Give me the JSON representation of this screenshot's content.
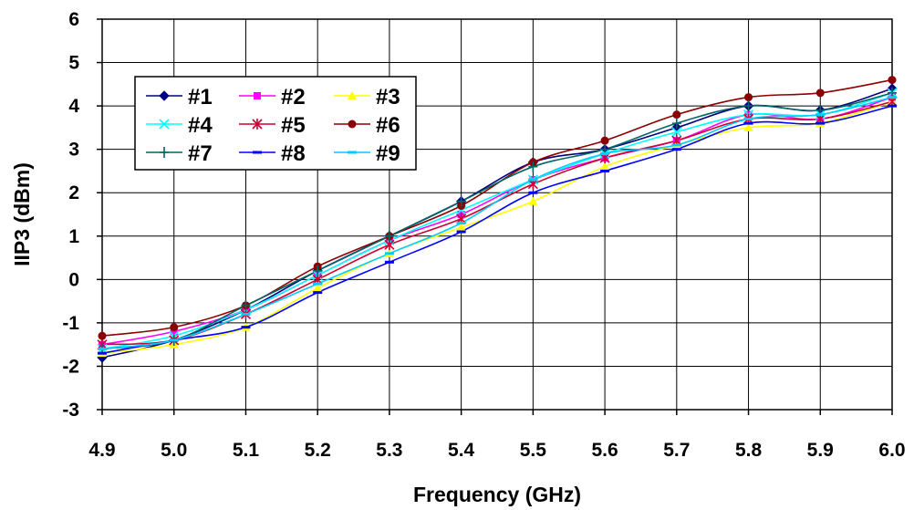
{
  "chart_data": {
    "type": "line",
    "title": "",
    "xlabel": "Frequency (GHz)",
    "ylabel": "IIP3 (dBm)",
    "x": [
      "4.9",
      "5.0",
      "5.1",
      "5.2",
      "5.3",
      "5.4",
      "5.5",
      "5.6",
      "5.7",
      "5.8",
      "5.9",
      "6.0"
    ],
    "yticks": [
      "6",
      "5",
      "4",
      "3",
      "2",
      "1",
      "0",
      "-1",
      "-2",
      "-3"
    ],
    "ylim": [
      -3,
      6
    ],
    "grid": true,
    "legend_placement": "upper-left",
    "series": [
      {
        "name": "#1",
        "color": "#000080",
        "marker": "diamond",
        "values": [
          -1.8,
          -1.4,
          -0.7,
          0.2,
          1.0,
          1.8,
          2.7,
          3.0,
          3.5,
          4.0,
          3.9,
          4.4
        ]
      },
      {
        "name": "#2",
        "color": "#ff00ff",
        "marker": "square",
        "values": [
          -1.5,
          -1.2,
          -0.7,
          0.1,
          0.9,
          1.5,
          2.3,
          2.8,
          3.2,
          3.8,
          3.7,
          4.2
        ]
      },
      {
        "name": "#3",
        "color": "#ffff00",
        "marker": "triangle",
        "values": [
          -1.7,
          -1.5,
          -1.1,
          -0.2,
          0.6,
          1.2,
          1.8,
          2.6,
          3.1,
          3.5,
          3.6,
          4.1
        ]
      },
      {
        "name": "#4",
        "color": "#00ffff",
        "marker": "x",
        "values": [
          -1.6,
          -1.3,
          -0.7,
          0.1,
          0.9,
          1.6,
          2.3,
          2.9,
          3.4,
          3.8,
          3.8,
          4.3
        ]
      },
      {
        "name": "#5",
        "color": "#cc0033",
        "marker": "star",
        "values": [
          -1.5,
          -1.4,
          -0.8,
          0.0,
          0.8,
          1.4,
          2.2,
          2.8,
          3.2,
          3.7,
          3.7,
          4.1
        ]
      },
      {
        "name": "#6",
        "color": "#8b0000",
        "marker": "circle",
        "values": [
          -1.3,
          -1.1,
          -0.6,
          0.3,
          1.0,
          1.7,
          2.7,
          3.2,
          3.8,
          4.2,
          4.3,
          4.6
        ]
      },
      {
        "name": "#7",
        "color": "#006666",
        "marker": "plus",
        "values": [
          -1.6,
          -1.4,
          -0.6,
          0.2,
          1.0,
          1.8,
          2.6,
          3.0,
          3.6,
          4.0,
          3.9,
          4.3
        ]
      },
      {
        "name": "#8",
        "color": "#0000ff",
        "marker": "dash",
        "values": [
          -1.7,
          -1.4,
          -1.1,
          -0.3,
          0.4,
          1.1,
          2.0,
          2.5,
          3.0,
          3.6,
          3.6,
          4.0
        ]
      },
      {
        "name": "#9",
        "color": "#00ccff",
        "marker": "dash",
        "values": [
          -1.6,
          -1.4,
          -0.8,
          -0.1,
          0.6,
          1.3,
          2.3,
          2.9,
          3.1,
          3.7,
          3.8,
          4.2
        ]
      }
    ]
  }
}
